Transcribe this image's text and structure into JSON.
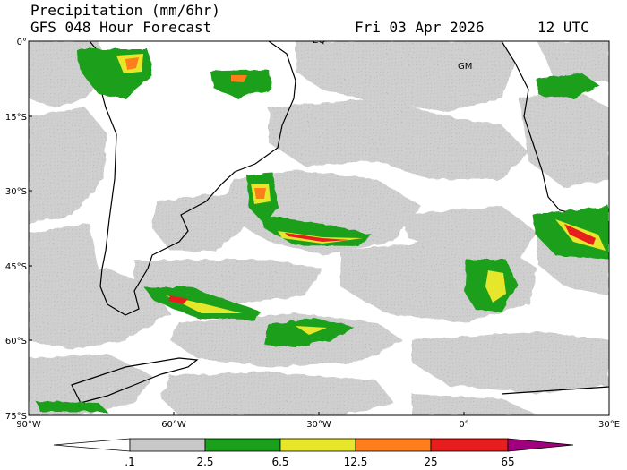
{
  "header": {
    "title": "Precipitation (mm/6hr)",
    "subtitle": "GFS 048 Hour Forecast",
    "date": "Fri 03 Apr 2026",
    "time": "12 UTC"
  },
  "map": {
    "lon_range": [
      -90,
      30
    ],
    "lat_range": [
      -75,
      0
    ],
    "lat_labels": [
      "0°",
      "15°S",
      "30°S",
      "45°S",
      "60°S",
      "75°S"
    ],
    "lon_labels": [
      "90°W",
      "60°W",
      "30°W",
      "0°",
      "30°E"
    ],
    "markers": [
      "EQ",
      "GM"
    ]
  },
  "colorbar": {
    "labels": [
      ".1",
      "2.5",
      "6.5",
      "12.5",
      "25",
      "65"
    ],
    "colors": [
      "#ffffff",
      "#c8c8c8",
      "#1aa01a",
      "#e6e62a",
      "#ff7d1a",
      "#e81e1e",
      "#a0007d"
    ]
  }
}
